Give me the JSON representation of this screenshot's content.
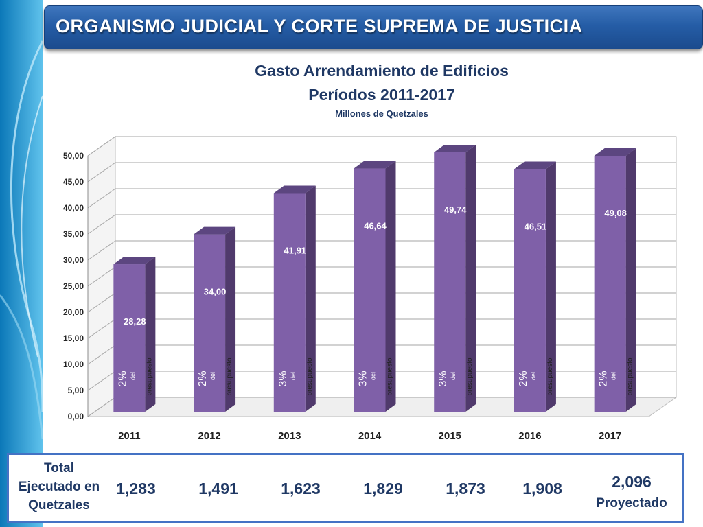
{
  "header": {
    "title": "ORGANISMO JUDICIAL Y CORTE SUPREMA DE JUSTICIA"
  },
  "chart_data": {
    "type": "bar",
    "title": "Gasto Arrendamiento de Edificios",
    "subtitle": "Períodos 2011-2017",
    "ylabel": "Millones de Quetzales",
    "xlabel": "",
    "ylim": [
      0,
      50
    ],
    "yticks": [
      "0,00",
      "5,00",
      "10,00",
      "15,00",
      "20,00",
      "25,00",
      "30,00",
      "35,00",
      "40,00",
      "45,00",
      "50,00"
    ],
    "grid": true,
    "categories": [
      "2011",
      "2012",
      "2013",
      "2014",
      "2015",
      "2016",
      "2017"
    ],
    "values": [
      28.28,
      34.0,
      41.91,
      46.64,
      49.74,
      46.51,
      49.08
    ],
    "value_labels": [
      "28,28",
      "34,00",
      "41,91",
      "46,64",
      "49,74",
      "46,51",
      "49,08"
    ],
    "budget_pct": [
      "2%",
      "2%",
      "3%",
      "3%",
      "3%",
      "2%",
      "2%"
    ],
    "budget_del": "del",
    "budget_text": "presupuesto",
    "bar_color": "#7f60a8",
    "bar_side_color": "#503a6c",
    "bar_top_color": "#5c4680"
  },
  "totals": {
    "label_lines": [
      "Total",
      "Ejecutado en",
      "Quetzales"
    ],
    "values": [
      "1,283",
      "1,491",
      "1,623",
      "1,829",
      "1,873",
      "1,908",
      "2,096"
    ],
    "projected_label": "Proyectado"
  }
}
